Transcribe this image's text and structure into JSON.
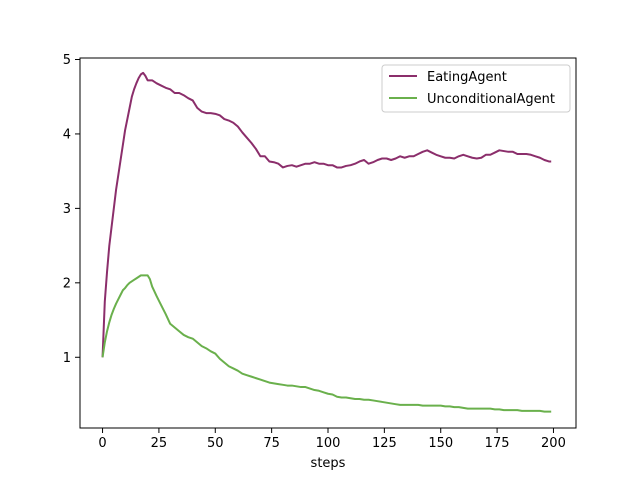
{
  "chart_data": {
    "type": "line",
    "title": "",
    "xlabel": "steps",
    "ylabel": "",
    "xlim": [
      -10,
      210
    ],
    "ylim": [
      0.05,
      5.02
    ],
    "xticks": [
      0,
      25,
      50,
      75,
      100,
      125,
      150,
      175,
      200
    ],
    "yticks": [
      1,
      2,
      3,
      4,
      5
    ],
    "grid": false,
    "legend_position": "top-right",
    "series": [
      {
        "name": "EatingAgent",
        "color": "#8b2e6b",
        "points": [
          [
            0,
            1.0
          ],
          [
            1,
            1.75
          ],
          [
            2,
            2.15
          ],
          [
            3,
            2.5
          ],
          [
            4,
            2.75
          ],
          [
            5,
            3.0
          ],
          [
            6,
            3.25
          ],
          [
            7,
            3.45
          ],
          [
            8,
            3.65
          ],
          [
            9,
            3.85
          ],
          [
            10,
            4.05
          ],
          [
            11,
            4.2
          ],
          [
            12,
            4.35
          ],
          [
            13,
            4.5
          ],
          [
            14,
            4.6
          ],
          [
            15,
            4.68
          ],
          [
            16,
            4.75
          ],
          [
            17,
            4.8
          ],
          [
            18,
            4.82
          ],
          [
            19,
            4.78
          ],
          [
            20,
            4.72
          ],
          [
            22,
            4.72
          ],
          [
            24,
            4.68
          ],
          [
            26,
            4.65
          ],
          [
            28,
            4.62
          ],
          [
            30,
            4.6
          ],
          [
            32,
            4.55
          ],
          [
            34,
            4.55
          ],
          [
            36,
            4.52
          ],
          [
            38,
            4.48
          ],
          [
            40,
            4.45
          ],
          [
            42,
            4.35
          ],
          [
            44,
            4.3
          ],
          [
            46,
            4.28
          ],
          [
            48,
            4.28
          ],
          [
            50,
            4.27
          ],
          [
            52,
            4.25
          ],
          [
            54,
            4.2
          ],
          [
            56,
            4.18
          ],
          [
            58,
            4.15
          ],
          [
            60,
            4.1
          ],
          [
            62,
            4.02
          ],
          [
            64,
            3.95
          ],
          [
            66,
            3.88
          ],
          [
            68,
            3.8
          ],
          [
            70,
            3.7
          ],
          [
            72,
            3.7
          ],
          [
            74,
            3.63
          ],
          [
            76,
            3.62
          ],
          [
            78,
            3.6
          ],
          [
            80,
            3.55
          ],
          [
            82,
            3.57
          ],
          [
            84,
            3.58
          ],
          [
            86,
            3.56
          ],
          [
            88,
            3.58
          ],
          [
            90,
            3.6
          ],
          [
            92,
            3.6
          ],
          [
            94,
            3.62
          ],
          [
            96,
            3.6
          ],
          [
            98,
            3.6
          ],
          [
            100,
            3.58
          ],
          [
            102,
            3.58
          ],
          [
            104,
            3.55
          ],
          [
            106,
            3.55
          ],
          [
            108,
            3.57
          ],
          [
            110,
            3.58
          ],
          [
            112,
            3.6
          ],
          [
            114,
            3.63
          ],
          [
            116,
            3.65
          ],
          [
            118,
            3.6
          ],
          [
            120,
            3.62
          ],
          [
            122,
            3.65
          ],
          [
            124,
            3.67
          ],
          [
            126,
            3.67
          ],
          [
            128,
            3.65
          ],
          [
            130,
            3.67
          ],
          [
            132,
            3.7
          ],
          [
            134,
            3.68
          ],
          [
            136,
            3.7
          ],
          [
            138,
            3.7
          ],
          [
            140,
            3.73
          ],
          [
            142,
            3.76
          ],
          [
            144,
            3.78
          ],
          [
            146,
            3.75
          ],
          [
            148,
            3.72
          ],
          [
            150,
            3.7
          ],
          [
            152,
            3.68
          ],
          [
            154,
            3.68
          ],
          [
            156,
            3.67
          ],
          [
            158,
            3.7
          ],
          [
            160,
            3.72
          ],
          [
            162,
            3.7
          ],
          [
            164,
            3.68
          ],
          [
            166,
            3.67
          ],
          [
            168,
            3.68
          ],
          [
            170,
            3.72
          ],
          [
            172,
            3.72
          ],
          [
            174,
            3.75
          ],
          [
            176,
            3.78
          ],
          [
            178,
            3.77
          ],
          [
            180,
            3.76
          ],
          [
            182,
            3.76
          ],
          [
            184,
            3.73
          ],
          [
            186,
            3.73
          ],
          [
            188,
            3.73
          ],
          [
            190,
            3.72
          ],
          [
            192,
            3.7
          ],
          [
            194,
            3.68
          ],
          [
            196,
            3.65
          ],
          [
            198,
            3.63
          ],
          [
            199,
            3.63
          ]
        ]
      },
      {
        "name": "UnconditionalAgent",
        "color": "#6ab04c",
        "points": [
          [
            0,
            1.0
          ],
          [
            1,
            1.2
          ],
          [
            2,
            1.35
          ],
          [
            3,
            1.47
          ],
          [
            4,
            1.57
          ],
          [
            5,
            1.65
          ],
          [
            6,
            1.72
          ],
          [
            7,
            1.78
          ],
          [
            8,
            1.84
          ],
          [
            9,
            1.9
          ],
          [
            10,
            1.93
          ],
          [
            11,
            1.97
          ],
          [
            12,
            2.0
          ],
          [
            13,
            2.02
          ],
          [
            14,
            2.04
          ],
          [
            15,
            2.06
          ],
          [
            16,
            2.08
          ],
          [
            17,
            2.1
          ],
          [
            18,
            2.1
          ],
          [
            19,
            2.1
          ],
          [
            20,
            2.1
          ],
          [
            21,
            2.05
          ],
          [
            22,
            1.95
          ],
          [
            24,
            1.82
          ],
          [
            26,
            1.7
          ],
          [
            28,
            1.58
          ],
          [
            30,
            1.45
          ],
          [
            32,
            1.4
          ],
          [
            34,
            1.35
          ],
          [
            36,
            1.3
          ],
          [
            38,
            1.27
          ],
          [
            40,
            1.25
          ],
          [
            42,
            1.2
          ],
          [
            44,
            1.15
          ],
          [
            46,
            1.12
          ],
          [
            48,
            1.08
          ],
          [
            50,
            1.05
          ],
          [
            52,
            0.98
          ],
          [
            54,
            0.93
          ],
          [
            56,
            0.88
          ],
          [
            58,
            0.85
          ],
          [
            60,
            0.82
          ],
          [
            62,
            0.78
          ],
          [
            64,
            0.76
          ],
          [
            66,
            0.74
          ],
          [
            68,
            0.72
          ],
          [
            70,
            0.7
          ],
          [
            72,
            0.68
          ],
          [
            74,
            0.66
          ],
          [
            76,
            0.65
          ],
          [
            78,
            0.64
          ],
          [
            80,
            0.63
          ],
          [
            82,
            0.62
          ],
          [
            84,
            0.62
          ],
          [
            86,
            0.61
          ],
          [
            88,
            0.6
          ],
          [
            90,
            0.6
          ],
          [
            92,
            0.58
          ],
          [
            94,
            0.56
          ],
          [
            96,
            0.55
          ],
          [
            98,
            0.53
          ],
          [
            100,
            0.51
          ],
          [
            102,
            0.5
          ],
          [
            104,
            0.47
          ],
          [
            106,
            0.46
          ],
          [
            108,
            0.46
          ],
          [
            110,
            0.45
          ],
          [
            112,
            0.44
          ],
          [
            114,
            0.44
          ],
          [
            116,
            0.43
          ],
          [
            118,
            0.43
          ],
          [
            120,
            0.42
          ],
          [
            122,
            0.41
          ],
          [
            124,
            0.4
          ],
          [
            126,
            0.39
          ],
          [
            128,
            0.38
          ],
          [
            130,
            0.37
          ],
          [
            132,
            0.36
          ],
          [
            134,
            0.36
          ],
          [
            136,
            0.36
          ],
          [
            138,
            0.36
          ],
          [
            140,
            0.36
          ],
          [
            142,
            0.35
          ],
          [
            144,
            0.35
          ],
          [
            146,
            0.35
          ],
          [
            148,
            0.35
          ],
          [
            150,
            0.35
          ],
          [
            152,
            0.34
          ],
          [
            154,
            0.34
          ],
          [
            156,
            0.33
          ],
          [
            158,
            0.33
          ],
          [
            160,
            0.32
          ],
          [
            162,
            0.31
          ],
          [
            164,
            0.31
          ],
          [
            166,
            0.31
          ],
          [
            168,
            0.31
          ],
          [
            170,
            0.31
          ],
          [
            172,
            0.31
          ],
          [
            174,
            0.3
          ],
          [
            176,
            0.3
          ],
          [
            178,
            0.29
          ],
          [
            180,
            0.29
          ],
          [
            182,
            0.29
          ],
          [
            184,
            0.29
          ],
          [
            186,
            0.28
          ],
          [
            188,
            0.28
          ],
          [
            190,
            0.28
          ],
          [
            192,
            0.28
          ],
          [
            194,
            0.28
          ],
          [
            196,
            0.27
          ],
          [
            198,
            0.27
          ],
          [
            199,
            0.27
          ]
        ]
      }
    ]
  }
}
